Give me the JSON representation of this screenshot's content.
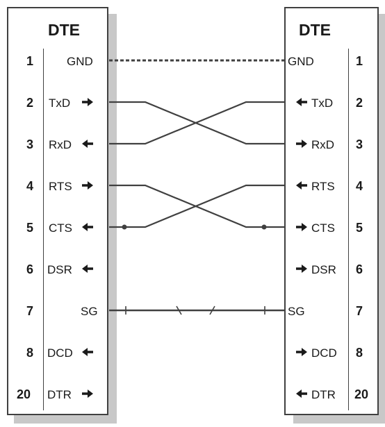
{
  "left": {
    "title": "DTE",
    "rows": [
      {
        "pin": "1",
        "signal": "GND"
      },
      {
        "pin": "2",
        "signal": "TxD"
      },
      {
        "pin": "3",
        "signal": "RxD"
      },
      {
        "pin": "4",
        "signal": "RTS"
      },
      {
        "pin": "5",
        "signal": "CTS"
      },
      {
        "pin": "6",
        "signal": "DSR"
      },
      {
        "pin": "7",
        "signal": "SG"
      },
      {
        "pin": "8",
        "signal": "DCD"
      },
      {
        "pin": "20",
        "signal": "DTR"
      }
    ]
  },
  "right": {
    "title": "DTE",
    "rows": [
      {
        "pin": "1",
        "signal": "GND"
      },
      {
        "pin": "2",
        "signal": "TxD"
      },
      {
        "pin": "3",
        "signal": "RxD"
      },
      {
        "pin": "4",
        "signal": "RTS"
      },
      {
        "pin": "5",
        "signal": "CTS"
      },
      {
        "pin": "6",
        "signal": "DSR"
      },
      {
        "pin": "7",
        "signal": "SG"
      },
      {
        "pin": "8",
        "signal": "DCD"
      },
      {
        "pin": "20",
        "signal": "DTR"
      }
    ]
  },
  "colors": {
    "line": "#404040",
    "shadow": "#c8c8c8"
  }
}
